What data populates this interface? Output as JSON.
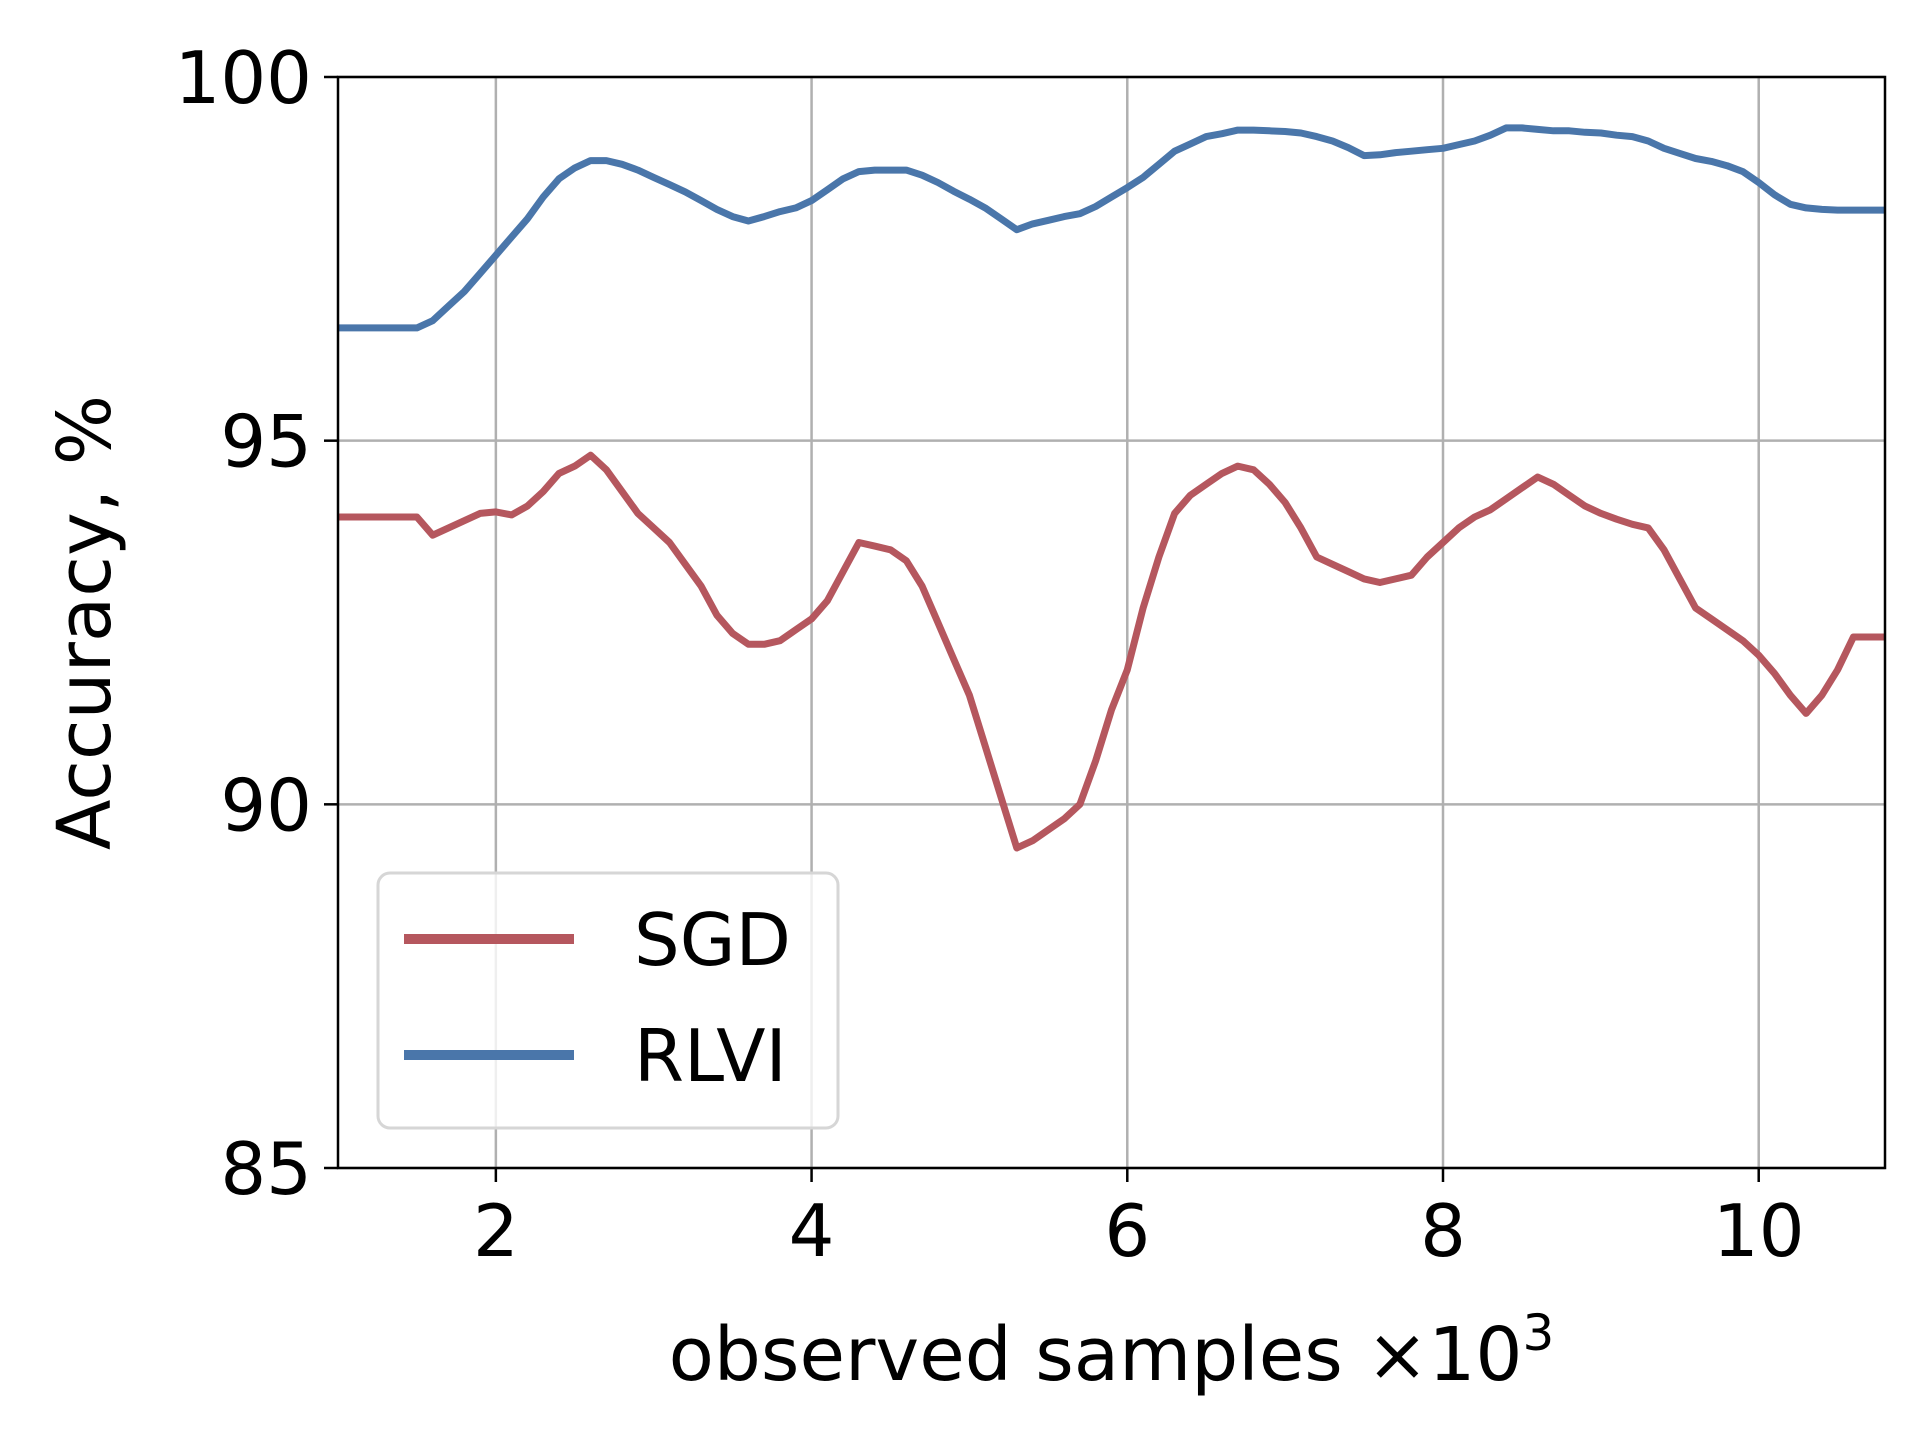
{
  "chart_data": {
    "type": "line",
    "xlabel": "observed samples ×10",
    "xlabel_exponent": "3",
    "ylabel": "Accuracy, %",
    "xlim": [
      1.0,
      10.8
    ],
    "ylim": [
      85,
      100
    ],
    "xticks": [
      2,
      4,
      6,
      8,
      10
    ],
    "xtick_labels": [
      "2",
      "4",
      "6",
      "8",
      "10"
    ],
    "yticks": [
      85,
      90,
      95,
      100
    ],
    "ytick_labels": [
      "85",
      "90",
      "95",
      "100"
    ],
    "grid": true,
    "legend_position": "lower-left",
    "series": [
      {
        "name": "SGD",
        "color": "#b5575e",
        "points": [
          [
            1.0,
            93.95
          ],
          [
            1.5,
            93.95
          ],
          [
            1.6,
            93.7
          ],
          [
            1.7,
            93.8
          ],
          [
            1.8,
            93.9
          ],
          [
            1.9,
            94.0
          ],
          [
            2.0,
            94.02
          ],
          [
            2.1,
            93.98
          ],
          [
            2.2,
            94.1
          ],
          [
            2.3,
            94.3
          ],
          [
            2.4,
            94.55
          ],
          [
            2.5,
            94.65
          ],
          [
            2.6,
            94.8
          ],
          [
            2.7,
            94.6
          ],
          [
            2.8,
            94.3
          ],
          [
            2.9,
            94.0
          ],
          [
            3.0,
            93.8
          ],
          [
            3.1,
            93.6
          ],
          [
            3.2,
            93.3
          ],
          [
            3.3,
            93.0
          ],
          [
            3.4,
            92.6
          ],
          [
            3.5,
            92.35
          ],
          [
            3.6,
            92.2
          ],
          [
            3.7,
            92.2
          ],
          [
            3.8,
            92.25
          ],
          [
            3.9,
            92.4
          ],
          [
            4.0,
            92.55
          ],
          [
            4.1,
            92.8
          ],
          [
            4.2,
            93.2
          ],
          [
            4.3,
            93.6
          ],
          [
            4.4,
            93.55
          ],
          [
            4.5,
            93.5
          ],
          [
            4.6,
            93.35
          ],
          [
            4.7,
            93.0
          ],
          [
            4.8,
            92.5
          ],
          [
            4.9,
            92.0
          ],
          [
            5.0,
            91.5
          ],
          [
            5.1,
            90.8
          ],
          [
            5.2,
            90.1
          ],
          [
            5.3,
            89.4
          ],
          [
            5.4,
            89.5
          ],
          [
            5.5,
            89.65
          ],
          [
            5.6,
            89.8
          ],
          [
            5.7,
            90.0
          ],
          [
            5.8,
            90.6
          ],
          [
            5.9,
            91.3
          ],
          [
            6.0,
            91.85
          ],
          [
            6.1,
            92.7
          ],
          [
            6.2,
            93.4
          ],
          [
            6.3,
            94.0
          ],
          [
            6.4,
            94.25
          ],
          [
            6.5,
            94.4
          ],
          [
            6.6,
            94.55
          ],
          [
            6.7,
            94.65
          ],
          [
            6.8,
            94.6
          ],
          [
            6.9,
            94.4
          ],
          [
            7.0,
            94.15
          ],
          [
            7.1,
            93.8
          ],
          [
            7.2,
            93.4
          ],
          [
            7.3,
            93.3
          ],
          [
            7.4,
            93.2
          ],
          [
            7.5,
            93.1
          ],
          [
            7.6,
            93.05
          ],
          [
            7.7,
            93.1
          ],
          [
            7.8,
            93.15
          ],
          [
            7.9,
            93.4
          ],
          [
            8.0,
            93.6
          ],
          [
            8.1,
            93.8
          ],
          [
            8.2,
            93.95
          ],
          [
            8.3,
            94.05
          ],
          [
            8.4,
            94.2
          ],
          [
            8.5,
            94.35
          ],
          [
            8.6,
            94.5
          ],
          [
            8.7,
            94.4
          ],
          [
            8.8,
            94.25
          ],
          [
            8.9,
            94.1
          ],
          [
            9.0,
            94.0
          ],
          [
            9.1,
            93.92
          ],
          [
            9.2,
            93.85
          ],
          [
            9.3,
            93.8
          ],
          [
            9.4,
            93.5
          ],
          [
            9.5,
            93.1
          ],
          [
            9.6,
            92.7
          ],
          [
            9.7,
            92.55
          ],
          [
            9.8,
            92.4
          ],
          [
            9.9,
            92.25
          ],
          [
            10.0,
            92.05
          ],
          [
            10.1,
            91.8
          ],
          [
            10.2,
            91.5
          ],
          [
            10.3,
            91.25
          ],
          [
            10.4,
            91.5
          ],
          [
            10.5,
            91.85
          ],
          [
            10.6,
            92.3
          ],
          [
            10.8,
            92.3
          ]
        ]
      },
      {
        "name": "RLVI",
        "color": "#4a76aa",
        "points": [
          [
            1.0,
            96.55
          ],
          [
            1.5,
            96.55
          ],
          [
            1.6,
            96.65
          ],
          [
            1.7,
            96.85
          ],
          [
            1.8,
            97.05
          ],
          [
            1.9,
            97.3
          ],
          [
            2.0,
            97.55
          ],
          [
            2.1,
            97.8
          ],
          [
            2.2,
            98.05
          ],
          [
            2.3,
            98.35
          ],
          [
            2.4,
            98.6
          ],
          [
            2.5,
            98.75
          ],
          [
            2.6,
            98.85
          ],
          [
            2.7,
            98.85
          ],
          [
            2.8,
            98.8
          ],
          [
            2.9,
            98.72
          ],
          [
            3.0,
            98.62
          ],
          [
            3.1,
            98.52
          ],
          [
            3.2,
            98.42
          ],
          [
            3.3,
            98.3
          ],
          [
            3.4,
            98.18
          ],
          [
            3.5,
            98.08
          ],
          [
            3.6,
            98.02
          ],
          [
            3.7,
            98.08
          ],
          [
            3.8,
            98.15
          ],
          [
            3.9,
            98.2
          ],
          [
            4.0,
            98.3
          ],
          [
            4.1,
            98.45
          ],
          [
            4.2,
            98.6
          ],
          [
            4.3,
            98.7
          ],
          [
            4.4,
            98.72
          ],
          [
            4.5,
            98.72
          ],
          [
            4.6,
            98.72
          ],
          [
            4.7,
            98.65
          ],
          [
            4.8,
            98.55
          ],
          [
            4.9,
            98.43
          ],
          [
            5.0,
            98.32
          ],
          [
            5.1,
            98.2
          ],
          [
            5.2,
            98.05
          ],
          [
            5.3,
            97.9
          ],
          [
            5.4,
            97.98
          ],
          [
            5.5,
            98.03
          ],
          [
            5.6,
            98.08
          ],
          [
            5.7,
            98.12
          ],
          [
            5.8,
            98.22
          ],
          [
            5.9,
            98.35
          ],
          [
            6.0,
            98.48
          ],
          [
            6.1,
            98.62
          ],
          [
            6.2,
            98.8
          ],
          [
            6.3,
            98.98
          ],
          [
            6.4,
            99.08
          ],
          [
            6.5,
            99.18
          ],
          [
            6.6,
            99.22
          ],
          [
            6.7,
            99.27
          ],
          [
            6.8,
            99.27
          ],
          [
            6.9,
            99.26
          ],
          [
            7.0,
            99.25
          ],
          [
            7.1,
            99.23
          ],
          [
            7.2,
            99.18
          ],
          [
            7.3,
            99.12
          ],
          [
            7.4,
            99.03
          ],
          [
            7.5,
            98.92
          ],
          [
            7.6,
            98.93
          ],
          [
            7.7,
            98.96
          ],
          [
            7.8,
            98.98
          ],
          [
            7.9,
            99.0
          ],
          [
            8.0,
            99.02
          ],
          [
            8.1,
            99.07
          ],
          [
            8.2,
            99.12
          ],
          [
            8.3,
            99.2
          ],
          [
            8.4,
            99.3
          ],
          [
            8.5,
            99.3
          ],
          [
            8.6,
            99.28
          ],
          [
            8.7,
            99.26
          ],
          [
            8.8,
            99.26
          ],
          [
            8.9,
            99.24
          ],
          [
            9.0,
            99.23
          ],
          [
            9.1,
            99.2
          ],
          [
            9.2,
            99.18
          ],
          [
            9.3,
            99.12
          ],
          [
            9.4,
            99.02
          ],
          [
            9.5,
            98.95
          ],
          [
            9.6,
            98.88
          ],
          [
            9.7,
            98.84
          ],
          [
            9.8,
            98.78
          ],
          [
            9.9,
            98.7
          ],
          [
            10.0,
            98.55
          ],
          [
            10.1,
            98.38
          ],
          [
            10.2,
            98.25
          ],
          [
            10.3,
            98.2
          ],
          [
            10.4,
            98.18
          ],
          [
            10.5,
            98.17
          ],
          [
            10.6,
            98.17
          ],
          [
            10.8,
            98.17
          ]
        ]
      }
    ]
  }
}
